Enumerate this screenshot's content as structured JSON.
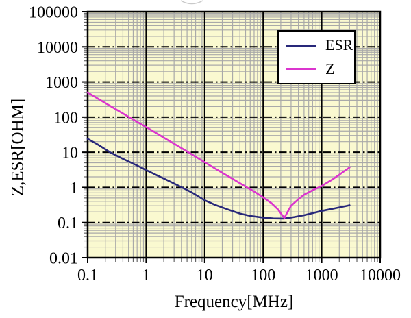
{
  "chart_data": {
    "type": "line",
    "title": "",
    "xlabel": "Frequency[MHz]",
    "ylabel": "Z,ESR[OHM]",
    "x_scale": "log",
    "y_scale": "log",
    "xlim": [
      0.1,
      10000
    ],
    "ylim": [
      0.01,
      100000
    ],
    "x_ticks": [
      0.1,
      1,
      10,
      100,
      1000,
      10000
    ],
    "x_tick_labels": [
      "0.1",
      "1",
      "10",
      "100",
      "1000",
      "10000"
    ],
    "y_ticks": [
      0.01,
      0.1,
      1,
      10,
      100,
      1000,
      10000,
      100000
    ],
    "y_tick_labels": [
      "0.01",
      "0.1",
      "1",
      "10",
      "100",
      "1000",
      "10000",
      "100000"
    ],
    "grid": {
      "minor": true,
      "major": true,
      "background": "#FAF9D0",
      "minor_color": "#A9A9A9",
      "major_color": "#000000"
    },
    "legend": {
      "position": "upper-right",
      "items": [
        "ESR",
        "Z"
      ]
    },
    "series": [
      {
        "name": "ESR",
        "color": "#28287A",
        "points": [
          [
            0.1,
            24
          ],
          [
            0.15,
            16.5
          ],
          [
            0.24,
            10
          ],
          [
            0.4,
            6.5
          ],
          [
            0.7,
            4.2
          ],
          [
            1,
            3.1
          ],
          [
            1.5,
            2.25
          ],
          [
            2.5,
            1.5
          ],
          [
            4,
            1.02
          ],
          [
            6,
            0.72
          ],
          [
            10,
            0.43
          ],
          [
            15,
            0.32
          ],
          [
            25,
            0.235
          ],
          [
            40,
            0.18
          ],
          [
            60,
            0.155
          ],
          [
            100,
            0.138
          ],
          [
            150,
            0.131
          ],
          [
            220,
            0.13
          ],
          [
            300,
            0.138
          ],
          [
            500,
            0.162
          ],
          [
            700,
            0.185
          ],
          [
            1000,
            0.215
          ],
          [
            1500,
            0.245
          ],
          [
            2000,
            0.27
          ],
          [
            3000,
            0.31
          ]
        ]
      },
      {
        "name": "Z",
        "color": "#DB35CE",
        "points": [
          [
            0.1,
            500
          ],
          [
            0.2,
            250
          ],
          [
            0.4,
            127
          ],
          [
            0.7,
            73
          ],
          [
            1,
            52
          ],
          [
            2,
            26
          ],
          [
            4,
            13.2
          ],
          [
            7,
            7.5
          ],
          [
            10,
            5.2
          ],
          [
            20,
            2.6
          ],
          [
            40,
            1.32
          ],
          [
            70,
            0.76
          ],
          [
            100,
            0.52
          ],
          [
            140,
            0.35
          ],
          [
            180,
            0.235
          ],
          [
            210,
            0.165
          ],
          [
            230,
            0.135
          ],
          [
            255,
            0.185
          ],
          [
            300,
            0.3
          ],
          [
            400,
            0.46
          ],
          [
            500,
            0.62
          ],
          [
            700,
            0.83
          ],
          [
            1000,
            1.1
          ],
          [
            1500,
            1.65
          ],
          [
            2000,
            2.3
          ],
          [
            3000,
            3.7
          ]
        ]
      }
    ]
  }
}
